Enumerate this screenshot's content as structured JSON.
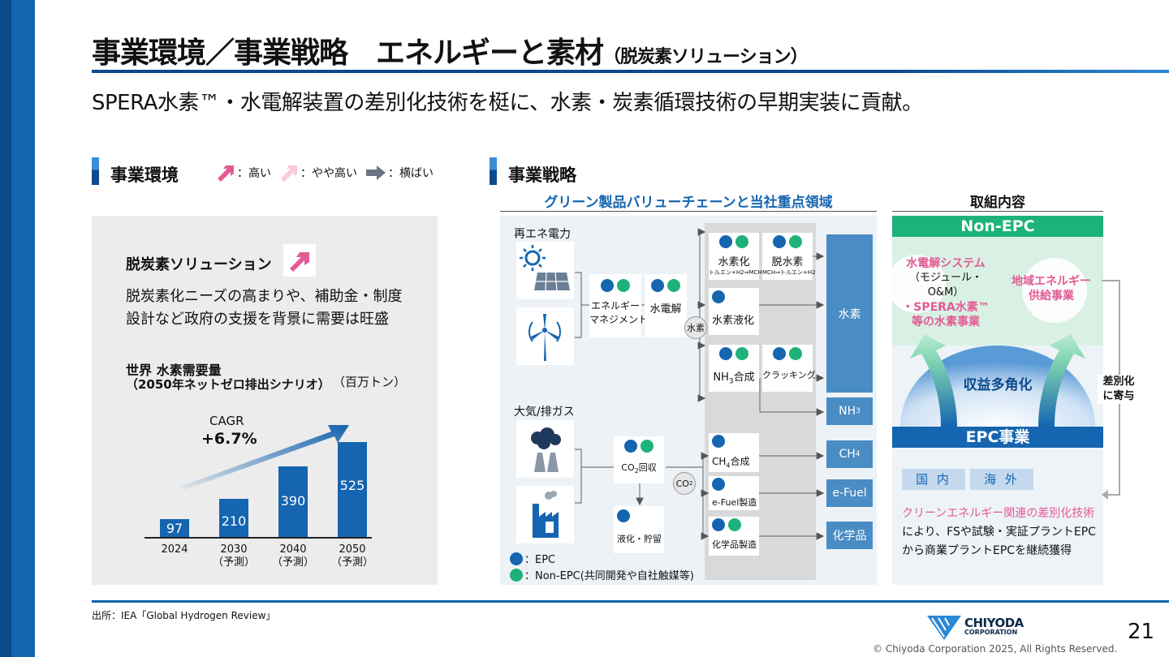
{
  "title": {
    "main": "事業環境／事業戦略　エネルギーと素材",
    "sub": "（脱炭素ソリューション）"
  },
  "lead": "SPERA水素™・水電解装置の差別化技術を梃に、水素・炭素循環技術の早期実装に貢献。",
  "env": {
    "heading": "事業環境",
    "legend": [
      {
        "icon": "arrow-high-icon",
        "label": "：高い"
      },
      {
        "icon": "arrow-mid-icon",
        "label": "：やや高い"
      },
      {
        "icon": "arrow-flat-icon",
        "label": "：横ばい"
      }
    ],
    "card_title": "脱炭素ソリューション",
    "card_text_1": "脱炭素化ニーズの高まりや、補助金・制度",
    "card_text_2": "設計など政府の支援を背景に需要は旺盛",
    "chart_title_1": "世界 水素需要量",
    "chart_title_2": "（2050年ネットゼロ排出シナリオ）",
    "unit": "（百万トン）",
    "cagr_label": "CAGR",
    "cagr_value": "+6.7%"
  },
  "chart_data": {
    "type": "bar",
    "title": "世界 水素需要量",
    "subtitle": "（2050年ネットゼロ排出シナリオ）",
    "ylabel": "（百万トン）",
    "categories": [
      "2024",
      "2030",
      "2040",
      "2050"
    ],
    "category_notes": [
      "",
      "（予測）",
      "（予測）",
      "（予測）"
    ],
    "values": [
      97,
      210,
      390,
      525
    ],
    "ylim": [
      0,
      560
    ],
    "annotation": "CAGR +6.7%",
    "colors": {
      "bar": "#1565b0"
    }
  },
  "strategy": {
    "heading": "事業戦略",
    "vc_title": "グリーン製品バリューチェーンと当社重点領域",
    "torikumi_title": "取組内容",
    "src_renew": "再エネ電力",
    "src_air": "大気/排ガス",
    "energy_mgmt_1": "エネルギー",
    "energy_mgmt_2": "マネジメント",
    "electrolysis": "水電解",
    "h2_small": "水素",
    "hydrogenation": "水素化",
    "hydrogenation_sub": "トルエン+H2⇒MCH",
    "dehydrogenation": "脱水素",
    "dehydrogenation_sub": "MCH⇒トルエン+H2",
    "h2_liquefaction": "水素液化",
    "nh3_synth_pre": "NH",
    "nh3_synth_sub": "3",
    "nh3_synth_post": "合成",
    "cracking": "クラッキング",
    "co2_capture_pre": "CO",
    "co2_capture_sub": "2",
    "co2_capture_post": "回収",
    "co2_small_pre": "CO",
    "co2_small_sub": "2",
    "liquefy_store": "液化・貯留",
    "ch4_synth_pre": "CH",
    "ch4_synth_sub": "4",
    "ch4_synth_post": "合成",
    "efuel_prod": "e-Fuel製造",
    "chem_prod": "化学品製造",
    "products": {
      "h2": "水素",
      "nh3_pre": "NH",
      "nh3_sub": "3",
      "ch4_pre": "CH",
      "ch4_sub": "4",
      "efuel": "e-Fuel",
      "chem": "化学品"
    },
    "legend_epc": "：EPC",
    "legend_non": "：Non-EPC(共同開発や自社触媒等)",
    "nonepc_head": "Non-EPC",
    "nonepc_item1_l1": "水電解システム",
    "nonepc_item1_l2": "（モジュール・O&M）",
    "nonepc_item1_l3": "・SPERA水素™",
    "nonepc_item1_l4": "等の水素事業",
    "nonepc_item2_l1": "地域エネルギー",
    "nonepc_item2_l2": "供給事業",
    "diversify": "収益多角化",
    "contrib_1": "差別化",
    "contrib_2": "に寄与",
    "epc_head": "EPC事業",
    "tag_domestic": "国 内",
    "tag_overseas": "海 外",
    "epc_text_1": "クリーンエネルギー関連の差別化技術",
    "epc_text_2": "により、FSや試験・実証プラントEPC",
    "epc_text_3": "から商業プラントEPCを継続獲得"
  },
  "footer": {
    "source": "出所：IEA「Global Hydrogen Review」",
    "logo_name": "CHIYODA",
    "logo_sub": "CORPORATION",
    "copyright": "© Chiyoda Corporation 2025, All Rights Reserved.",
    "page": "21"
  },
  "colors": {
    "brand": "#1565b0",
    "green": "#1db27a",
    "pink": "#e35a95"
  }
}
